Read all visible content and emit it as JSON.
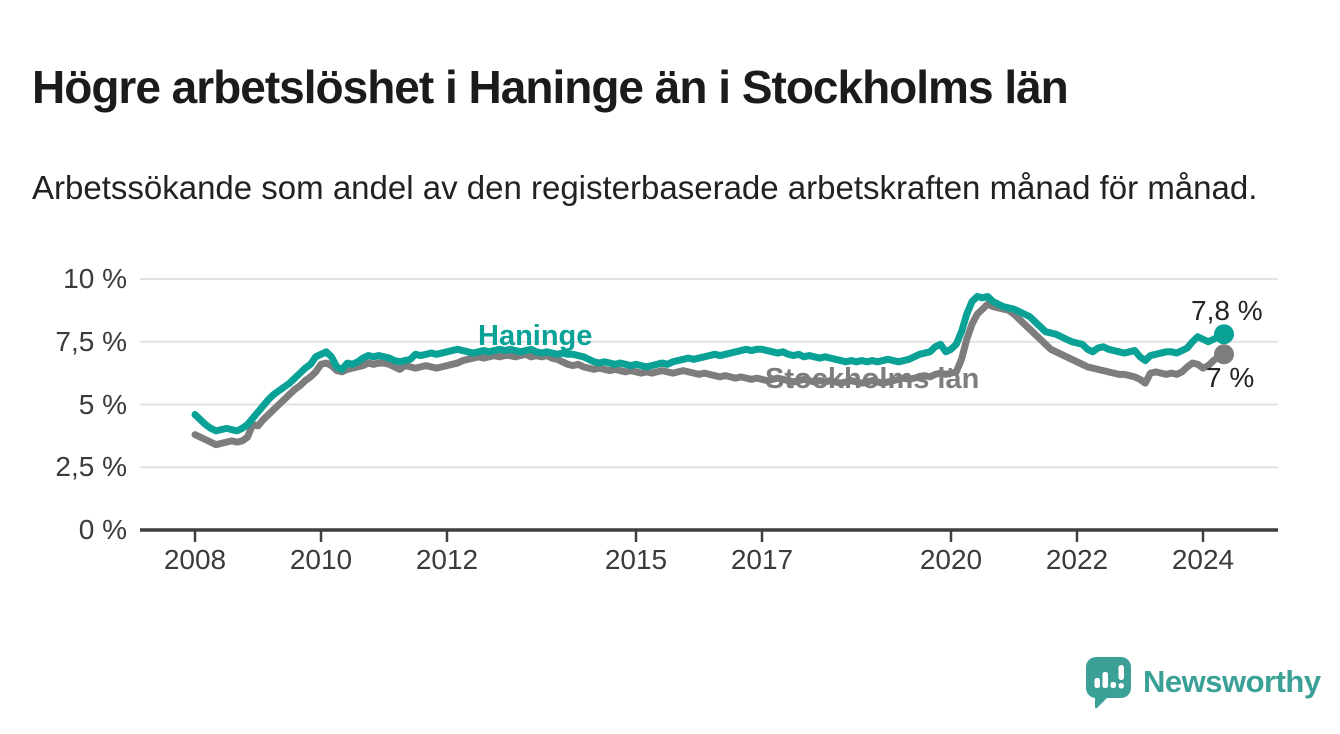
{
  "header": {
    "title": "Högre arbetslöshet i Haninge än i Stockholms län",
    "subtitle": "Arbetssökande som andel av den registerbaserade arbetskraften månad för månad."
  },
  "chart_data": {
    "type": "line",
    "title": "Högre arbetslöshet i Haninge än i Stockholms län",
    "subtitle": "Arbetssökande som andel av den registerbaserade arbetskraften månad för månad.",
    "unit": "%",
    "grid": true,
    "legend_position": "inline-labels",
    "ylim": [
      0,
      10
    ],
    "x_start_year": 2008,
    "points_per_year": 12,
    "x_end_approx": "mid 2024",
    "yticks": [
      {
        "value": 10,
        "label": "10 %"
      },
      {
        "value": 7.5,
        "label": "7,5 %"
      },
      {
        "value": 5,
        "label": "5 %"
      },
      {
        "value": 2.5,
        "label": "2,5 %"
      },
      {
        "value": 0,
        "label": "0 %"
      }
    ],
    "xticks": [
      {
        "year": 2008,
        "label": "2008"
      },
      {
        "year": 2010,
        "label": "2010"
      },
      {
        "year": 2012,
        "label": "2012"
      },
      {
        "year": 2015,
        "label": "2015"
      },
      {
        "year": 2017,
        "label": "2017"
      },
      {
        "year": 2020,
        "label": "2020"
      },
      {
        "year": 2022,
        "label": "2022"
      },
      {
        "year": 2024,
        "label": "2024"
      }
    ],
    "series": [
      {
        "name": "Haninge",
        "color": "#0aa196",
        "end_label": "7,8 %",
        "end_value": 7.8,
        "values": [
          4.6,
          4.4,
          4.2,
          4.05,
          3.95,
          4.0,
          4.05,
          4.0,
          3.95,
          4.05,
          4.2,
          4.45,
          4.7,
          4.95,
          5.2,
          5.4,
          5.55,
          5.7,
          5.85,
          6.05,
          6.25,
          6.45,
          6.6,
          6.9,
          7.0,
          7.1,
          6.9,
          6.5,
          6.4,
          6.65,
          6.6,
          6.7,
          6.85,
          6.95,
          6.9,
          6.95,
          6.9,
          6.85,
          6.75,
          6.7,
          6.75,
          6.8,
          7.0,
          6.95,
          7.0,
          7.05,
          7.0,
          7.05,
          7.1,
          7.15,
          7.2,
          7.15,
          7.1,
          7.05,
          7.1,
          7.15,
          7.1,
          7.15,
          7.2,
          7.15,
          7.2,
          7.15,
          7.1,
          7.15,
          7.2,
          7.1,
          7.05,
          7.1,
          7.05,
          7.0,
          7.05,
          7.0,
          7.0,
          6.95,
          6.9,
          6.8,
          6.7,
          6.65,
          6.7,
          6.65,
          6.6,
          6.65,
          6.6,
          6.55,
          6.6,
          6.55,
          6.5,
          6.55,
          6.6,
          6.65,
          6.6,
          6.7,
          6.75,
          6.8,
          6.85,
          6.8,
          6.85,
          6.9,
          6.95,
          7.0,
          6.95,
          7.0,
          7.05,
          7.1,
          7.15,
          7.2,
          7.15,
          7.2,
          7.2,
          7.15,
          7.1,
          7.05,
          7.1,
          7.0,
          6.95,
          7.0,
          6.9,
          6.95,
          6.9,
          6.85,
          6.9,
          6.85,
          6.8,
          6.75,
          6.7,
          6.75,
          6.7,
          6.75,
          6.7,
          6.75,
          6.7,
          6.75,
          6.8,
          6.75,
          6.7,
          6.75,
          6.8,
          6.9,
          7.0,
          7.05,
          7.1,
          7.3,
          7.4,
          7.1,
          7.2,
          7.4,
          7.9,
          8.6,
          9.1,
          9.3,
          9.25,
          9.3,
          9.1,
          9.0,
          8.9,
          8.85,
          8.8,
          8.7,
          8.6,
          8.5,
          8.3,
          8.1,
          7.9,
          7.85,
          7.8,
          7.7,
          7.6,
          7.5,
          7.45,
          7.4,
          7.2,
          7.1,
          7.25,
          7.3,
          7.2,
          7.15,
          7.1,
          7.05,
          7.1,
          7.15,
          6.9,
          6.75,
          6.95,
          7.0,
          7.05,
          7.1,
          7.1,
          7.05,
          7.15,
          7.25,
          7.5,
          7.7,
          7.6,
          7.5,
          7.6,
          7.7,
          7.8
        ]
      },
      {
        "name": "Stockholms län",
        "color": "#7d7d7d",
        "end_label": "7 %",
        "end_value": 7.0,
        "values": [
          3.8,
          3.7,
          3.6,
          3.5,
          3.4,
          3.45,
          3.5,
          3.55,
          3.5,
          3.55,
          3.7,
          4.2,
          4.15,
          4.4,
          4.6,
          4.8,
          5.0,
          5.2,
          5.4,
          5.6,
          5.75,
          5.95,
          6.1,
          6.3,
          6.6,
          6.65,
          6.55,
          6.35,
          6.3,
          6.4,
          6.45,
          6.5,
          6.55,
          6.65,
          6.6,
          6.65,
          6.65,
          6.6,
          6.5,
          6.4,
          6.55,
          6.5,
          6.45,
          6.5,
          6.55,
          6.5,
          6.45,
          6.5,
          6.55,
          6.6,
          6.65,
          6.75,
          6.8,
          6.85,
          6.9,
          6.85,
          6.9,
          6.95,
          6.9,
          6.95,
          6.95,
          6.9,
          6.95,
          7.0,
          6.9,
          6.95,
          6.9,
          6.95,
          6.85,
          6.8,
          6.7,
          6.6,
          6.55,
          6.6,
          6.5,
          6.45,
          6.4,
          6.45,
          6.4,
          6.35,
          6.4,
          6.35,
          6.3,
          6.35,
          6.3,
          6.25,
          6.3,
          6.25,
          6.3,
          6.35,
          6.3,
          6.25,
          6.3,
          6.35,
          6.3,
          6.25,
          6.2,
          6.25,
          6.2,
          6.15,
          6.1,
          6.15,
          6.1,
          6.05,
          6.1,
          6.05,
          6.0,
          6.05,
          6.0,
          5.95,
          6.0,
          6.05,
          6.0,
          5.95,
          5.9,
          5.95,
          6.0,
          5.95,
          5.9,
          5.95,
          5.9,
          5.95,
          5.9,
          5.85,
          5.9,
          5.95,
          5.9,
          5.85,
          5.9,
          5.95,
          5.9,
          5.85,
          5.9,
          5.95,
          6.0,
          6.05,
          6.0,
          6.05,
          6.1,
          6.15,
          6.1,
          6.2,
          6.25,
          6.2,
          6.25,
          6.3,
          6.8,
          7.6,
          8.2,
          8.6,
          8.8,
          9.0,
          8.9,
          8.85,
          8.8,
          8.75,
          8.6,
          8.4,
          8.2,
          8.0,
          7.8,
          7.6,
          7.4,
          7.2,
          7.1,
          7.0,
          6.9,
          6.8,
          6.7,
          6.6,
          6.5,
          6.45,
          6.4,
          6.35,
          6.3,
          6.25,
          6.2,
          6.2,
          6.15,
          6.1,
          6.0,
          5.85,
          6.25,
          6.3,
          6.25,
          6.2,
          6.25,
          6.2,
          6.3,
          6.5,
          6.65,
          6.6,
          6.45,
          6.55,
          6.75,
          6.9,
          7.0
        ]
      }
    ]
  },
  "colors": {
    "haninge_line": "#0aa196",
    "stockholm_line": "#7d7d7d",
    "title_text": "#1b1b1b",
    "axis_text": "#3b3b3b",
    "axis_line": "#3f3f3f",
    "gridline": "#e3e3e3",
    "brand_teal": "#3ba197",
    "background": "#ffffff"
  },
  "footer": {
    "brand": "Newsworthy",
    "logo_icon": "bar-chart-speech-bubble"
  }
}
